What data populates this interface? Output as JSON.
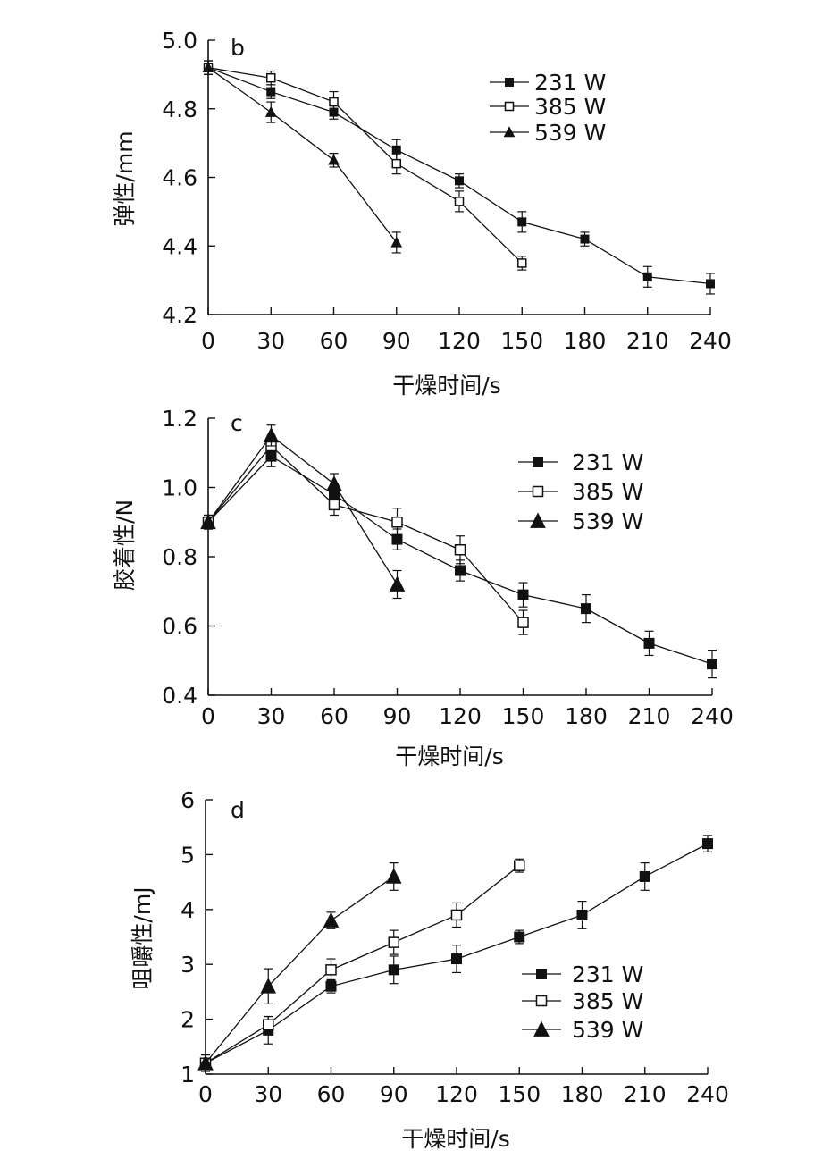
{
  "chart_data": [
    {
      "type": "line",
      "panel_label": "b",
      "xlabel": "干燥时间/s",
      "ylabel": "弹性/mm",
      "xlim": [
        0,
        240
      ],
      "ylim": [
        4.2,
        5.0
      ],
      "xticks": [
        "0",
        "30",
        "60",
        "90",
        "120",
        "150",
        "180",
        "210",
        "240"
      ],
      "yticks": [
        "4.2",
        "4.4",
        "4.6",
        "4.8",
        "5.0"
      ],
      "grid": false,
      "legend_position": "top-right",
      "series": [
        {
          "name": "231 W",
          "marker": "filled-square",
          "x": [
            0,
            30,
            60,
            90,
            120,
            150,
            180,
            210,
            240
          ],
          "y": [
            4.92,
            4.85,
            4.79,
            4.68,
            4.59,
            4.47,
            4.42,
            4.31,
            4.29
          ],
          "err": [
            0.02,
            0.02,
            0.02,
            0.03,
            0.02,
            0.03,
            0.02,
            0.03,
            0.03
          ]
        },
        {
          "name": "385 W",
          "marker": "open-square",
          "x": [
            0,
            30,
            60,
            90,
            120,
            150
          ],
          "y": [
            4.92,
            4.89,
            4.82,
            4.64,
            4.53,
            4.35
          ],
          "err": [
            0.02,
            0.02,
            0.03,
            0.03,
            0.03,
            0.02
          ]
        },
        {
          "name": "539 W",
          "marker": "filled-triangle",
          "x": [
            0,
            30,
            60,
            90
          ],
          "y": [
            4.92,
            4.79,
            4.65,
            4.41
          ],
          "err": [
            0.02,
            0.03,
            0.02,
            0.03
          ]
        }
      ]
    },
    {
      "type": "line",
      "panel_label": "c",
      "xlabel": "干燥时间/s",
      "ylabel": "胶着性/N",
      "xlim": [
        0,
        240
      ],
      "ylim": [
        0.4,
        1.2
      ],
      "xticks": [
        "0",
        "30",
        "60",
        "90",
        "120",
        "150",
        "180",
        "210",
        "240"
      ],
      "yticks": [
        "0.4",
        "0.6",
        "0.8",
        "1.0",
        "1.2"
      ],
      "grid": false,
      "legend_position": "top-right",
      "series": [
        {
          "name": "231 W",
          "marker": "filled-square",
          "x": [
            0,
            30,
            60,
            90,
            120,
            150,
            180,
            210,
            240
          ],
          "y": [
            0.9,
            1.09,
            0.98,
            0.85,
            0.76,
            0.69,
            0.65,
            0.55,
            0.49
          ],
          "err": [
            0.02,
            0.03,
            0.03,
            0.03,
            0.03,
            0.035,
            0.04,
            0.035,
            0.04
          ]
        },
        {
          "name": "385 W",
          "marker": "open-square",
          "x": [
            0,
            30,
            60,
            90,
            120,
            150
          ],
          "y": [
            0.9,
            1.12,
            0.95,
            0.9,
            0.82,
            0.61
          ],
          "err": [
            0.02,
            0.03,
            0.03,
            0.04,
            0.04,
            0.035
          ]
        },
        {
          "name": "539 W",
          "marker": "filled-triangle",
          "x": [
            0,
            30,
            60,
            90
          ],
          "y": [
            0.9,
            1.15,
            1.01,
            0.72
          ],
          "err": [
            0.02,
            0.03,
            0.03,
            0.04
          ]
        }
      ]
    },
    {
      "type": "line",
      "panel_label": "d",
      "xlabel": "干燥时间/s",
      "ylabel": "咀嚼性/mJ",
      "xlim": [
        0,
        240
      ],
      "ylim": [
        1,
        6
      ],
      "xticks": [
        "0",
        "30",
        "60",
        "90",
        "120",
        "150",
        "180",
        "210",
        "240"
      ],
      "yticks": [
        "1",
        "2",
        "3",
        "4",
        "5",
        "6"
      ],
      "grid": false,
      "legend_position": "bottom-right",
      "series": [
        {
          "name": "231 W",
          "marker": "filled-square",
          "x": [
            0,
            30,
            60,
            90,
            120,
            150,
            180,
            210,
            240
          ],
          "y": [
            1.2,
            1.8,
            2.6,
            2.9,
            3.1,
            3.5,
            3.9,
            4.6,
            5.2
          ],
          "err": [
            0.15,
            0.25,
            0.12,
            0.25,
            0.25,
            0.12,
            0.25,
            0.25,
            0.15
          ]
        },
        {
          "name": "385 W",
          "marker": "open-square",
          "x": [
            0,
            30,
            60,
            90,
            120,
            150
          ],
          "y": [
            1.2,
            1.9,
            2.9,
            3.4,
            3.9,
            4.8
          ],
          "err": [
            0.15,
            0.15,
            0.2,
            0.22,
            0.22,
            0.12
          ]
        },
        {
          "name": "539 W",
          "marker": "filled-triangle",
          "x": [
            0,
            30,
            60,
            90
          ],
          "y": [
            1.2,
            2.6,
            3.8,
            4.6
          ],
          "err": [
            0.15,
            0.32,
            0.15,
            0.25
          ]
        }
      ]
    }
  ]
}
